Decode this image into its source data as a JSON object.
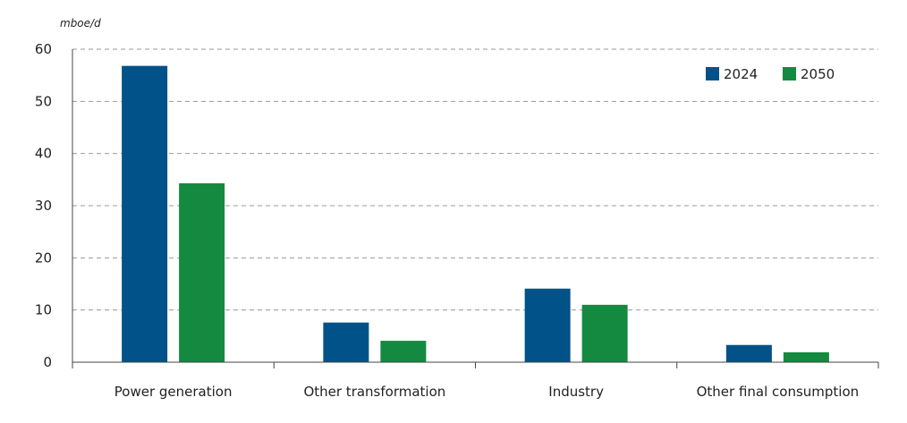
{
  "chart_data": {
    "type": "bar",
    "ylabel": "mboe/d",
    "categories": [
      "Power generation",
      "Other transformation",
      "Industry",
      "Other final consumption"
    ],
    "series": [
      {
        "name": "2024",
        "color": "#005288",
        "values": [
          56.8,
          7.6,
          14.1,
          3.3
        ]
      },
      {
        "name": "2050",
        "color": "#138a3f",
        "values": [
          34.3,
          4.1,
          11.0,
          1.9
        ]
      }
    ],
    "ylim": [
      0,
      60
    ],
    "yticks": [
      0,
      10,
      20,
      30,
      40,
      50,
      60
    ],
    "grid": true,
    "legend_position": "top-right"
  }
}
